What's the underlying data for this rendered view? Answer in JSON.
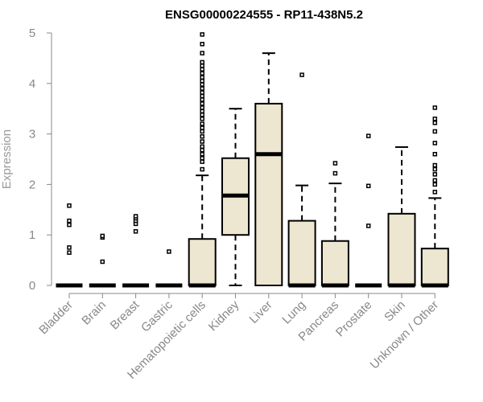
{
  "chart_data": {
    "type": "box",
    "title": "ENSG00000224555 - RP11-438N5.2",
    "xlabel": "",
    "ylabel": "Expression",
    "ylim": [
      0,
      5
    ],
    "yticks": [
      "0",
      "1",
      "2",
      "3",
      "4",
      "5"
    ],
    "grid": false,
    "colors": {
      "box_fill": "#ede6d0",
      "axis": "#888888"
    },
    "categories": [
      "Bladder",
      "Brain",
      "Breast",
      "Gastric",
      "Hematopoietic cells",
      "Kidney",
      "Liver",
      "Lung",
      "Pancreas",
      "Prostate",
      "Skin",
      "Unknown / Other"
    ],
    "boxes": [
      {
        "q1": 0,
        "median": 0,
        "q3": 0,
        "whisker_low": 0,
        "whisker_high": 0,
        "outliers": [
          0.65,
          0.75,
          1.2,
          1.28,
          1.58
        ]
      },
      {
        "q1": 0,
        "median": 0,
        "q3": 0,
        "whisker_low": 0,
        "whisker_high": 0,
        "outliers": [
          0.47,
          0.95,
          0.98
        ]
      },
      {
        "q1": 0,
        "median": 0,
        "q3": 0,
        "whisker_low": 0,
        "whisker_high": 0,
        "outliers": [
          1.07,
          1.22,
          1.28,
          1.33,
          1.37
        ]
      },
      {
        "q1": 0,
        "median": 0,
        "q3": 0,
        "whisker_low": 0,
        "whisker_high": 0,
        "outliers": [
          0.67
        ]
      },
      {
        "q1": 0,
        "median": 0,
        "q3": 0.92,
        "whisker_low": 0,
        "whisker_high": 2.18,
        "outliers": [
          2.3,
          2.45,
          2.52,
          2.6,
          2.68,
          2.75,
          2.85,
          2.95,
          3.05,
          3.12,
          3.2,
          3.3,
          3.38,
          3.45,
          3.52,
          3.6,
          3.68,
          3.75,
          3.82,
          3.9,
          3.98,
          4.05,
          4.12,
          4.2,
          4.28,
          4.35,
          4.42,
          4.6,
          4.78,
          4.97
        ]
      },
      {
        "q1": 1.0,
        "median": 1.78,
        "q3": 2.52,
        "whisker_low": 0,
        "whisker_high": 3.5,
        "outliers": []
      },
      {
        "q1": 0,
        "median": 2.6,
        "q3": 3.6,
        "whisker_low": 0,
        "whisker_high": 4.6,
        "outliers": []
      },
      {
        "q1": 0,
        "median": 0,
        "q3": 1.28,
        "whisker_low": 0,
        "whisker_high": 1.98,
        "outliers": [
          4.17
        ]
      },
      {
        "q1": 0,
        "median": 0,
        "q3": 0.88,
        "whisker_low": 0,
        "whisker_high": 2.02,
        "outliers": [
          2.22,
          2.42
        ]
      },
      {
        "q1": 0,
        "median": 0,
        "q3": 0,
        "whisker_low": 0,
        "whisker_high": 0,
        "outliers": [
          1.18,
          1.97,
          2.96
        ]
      },
      {
        "q1": 0,
        "median": 0,
        "q3": 1.42,
        "whisker_low": 0,
        "whisker_high": 2.74,
        "outliers": []
      },
      {
        "q1": 0,
        "median": 0,
        "q3": 0.73,
        "whisker_low": 0,
        "whisker_high": 1.73,
        "outliers": [
          1.85,
          2.0,
          2.08,
          2.2,
          2.3,
          2.38,
          2.6,
          2.82,
          3.05,
          3.22,
          3.3,
          3.52
        ]
      }
    ]
  }
}
